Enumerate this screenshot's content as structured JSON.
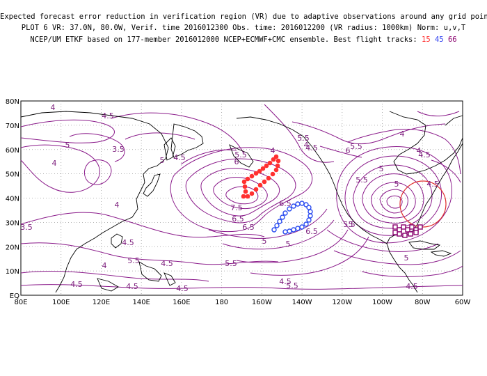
{
  "header": {
    "line1": "Expected forecast error reduction in verification region (VR) due to adaptive observations around any grid point.",
    "line2": "PLOT 6 VR: 37.0N, 80.0W, Verif. time 2016012300 Obs. time: 2016012200 (VR radius: 1000km) Norm: u,v,T",
    "line3_prefix": "NCEP/UM ETKF based on 177-member 2016012000 NCEP+ECMWF+CMC ensemble. Best flight tracks:",
    "track_a": "15",
    "track_b": "45",
    "track_c": "66"
  },
  "map": {
    "lat_labels": [
      "80N",
      "70N",
      "60N",
      "50N",
      "40N",
      "30N",
      "20N",
      "10N",
      "EQ"
    ],
    "lon_labels": [
      "80E",
      "100E",
      "120E",
      "140E",
      "160E",
      "180",
      "160W",
      "140W",
      "120W",
      "100W",
      "80W",
      "60W"
    ],
    "contour_labels": [
      "4",
      "4.5",
      "5",
      "3.5",
      "5",
      "4",
      "4.5",
      "6",
      "5.5",
      "4",
      "5.5",
      "4",
      "4.5",
      "6",
      "5.5",
      "5",
      "5.5",
      "5",
      "4.5",
      "4",
      "4",
      "7.5",
      "6.5",
      "6.5",
      "6.5",
      "5",
      "6.5",
      "4.5",
      "5",
      "5",
      "5.5",
      "5.5",
      "4.5",
      "5",
      "5.5",
      "4.5",
      "4.5",
      "4",
      "4.5",
      "5.5",
      "4.5",
      "3.5",
      "4.5",
      "4",
      "4.5"
    ],
    "colors": {
      "contour": "#8a1a8a",
      "coast": "#000000",
      "grid": "#9a9a9a",
      "track_red": "#ff3030",
      "track_blue": "#2a4cf0",
      "track_purple": "#8a006e",
      "vr_circle": "#e03030"
    }
  }
}
